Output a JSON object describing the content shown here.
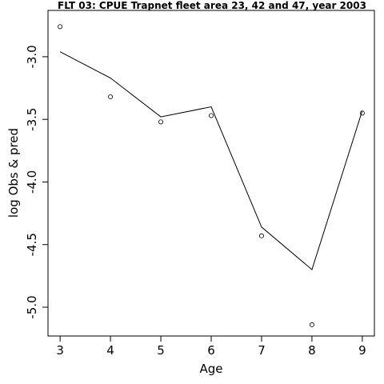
{
  "chart_data": {
    "type": "line",
    "title": "FLT 03: CPUE Trapnet fleet area 23, 42 and 47, year 2003",
    "xlabel": "Age",
    "ylabel": "log Obs & pred",
    "x": [
      3,
      4,
      5,
      6,
      7,
      8,
      9
    ],
    "x_ticks": [
      3,
      4,
      5,
      6,
      7,
      8,
      9
    ],
    "x_tick_labels": [
      "3",
      "4",
      "5",
      "6",
      "7",
      "8",
      "9"
    ],
    "y_ticks": [
      -3.0,
      -3.5,
      -4.0,
      -4.5,
      -5.0
    ],
    "y_tick_labels": [
      "-3.0",
      "-3.5",
      "-4.0",
      "-4.5",
      "-5.0"
    ],
    "xlim": [
      2.76,
      9.24
    ],
    "ylim": [
      -5.23,
      -2.63
    ],
    "grid": false,
    "series": [
      {
        "kind": "points",
        "values": [
          -2.76,
          -3.32,
          -3.52,
          -3.47,
          -4.43,
          -5.14,
          -3.45
        ]
      },
      {
        "kind": "line",
        "values": [
          -2.96,
          -3.17,
          -3.48,
          -3.4,
          -4.36,
          -4.7,
          -3.43
        ]
      }
    ]
  }
}
